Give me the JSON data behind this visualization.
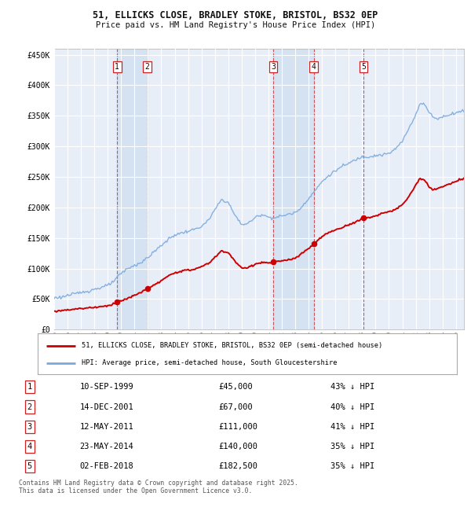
{
  "title_line1": "51, ELLICKS CLOSE, BRADLEY STOKE, BRISTOL, BS32 0EP",
  "title_line2": "Price paid vs. HM Land Registry's House Price Index (HPI)",
  "legend_line1": "51, ELLICKS CLOSE, BRADLEY STOKE, BRISTOL, BS32 0EP (semi-detached house)",
  "legend_line2": "HPI: Average price, semi-detached house, South Gloucestershire",
  "footer": "Contains HM Land Registry data © Crown copyright and database right 2025.\nThis data is licensed under the Open Government Licence v3.0.",
  "price_paid_color": "#cc0000",
  "hpi_color": "#7aaadd",
  "background_color": "#ffffff",
  "plot_bg_color": "#e8eef8",
  "grid_color": "#ffffff",
  "shade_color": "#ccddf0",
  "transactions": [
    {
      "num": 1,
      "date": "10-SEP-1999",
      "year": 1999.7,
      "price": 45000,
      "pct": "43% ↓ HPI"
    },
    {
      "num": 2,
      "date": "14-DEC-2001",
      "year": 2001.95,
      "price": 67000,
      "pct": "40% ↓ HPI"
    },
    {
      "num": 3,
      "date": "12-MAY-2011",
      "year": 2011.36,
      "price": 111000,
      "pct": "41% ↓ HPI"
    },
    {
      "num": 4,
      "date": "23-MAY-2014",
      "year": 2014.39,
      "price": 140000,
      "pct": "35% ↓ HPI"
    },
    {
      "num": 5,
      "date": "02-FEB-2018",
      "year": 2018.09,
      "price": 182500,
      "pct": "35% ↓ HPI"
    }
  ],
  "ylim": [
    0,
    460000
  ],
  "xlim_start": 1995.0,
  "xlim_end": 2025.6,
  "yticks": [
    0,
    50000,
    100000,
    150000,
    200000,
    250000,
    300000,
    350000,
    400000,
    450000
  ],
  "ytick_labels": [
    "£0",
    "£50K",
    "£100K",
    "£150K",
    "£200K",
    "£250K",
    "£300K",
    "£350K",
    "£400K",
    "£450K"
  ],
  "hpi_anchors": [
    [
      1995.0,
      52000
    ],
    [
      1995.5,
      53000
    ],
    [
      1996.0,
      56000
    ],
    [
      1996.5,
      58000
    ],
    [
      1997.0,
      61000
    ],
    [
      1997.5,
      63000
    ],
    [
      1998.0,
      66000
    ],
    [
      1998.5,
      69000
    ],
    [
      1999.0,
      72000
    ],
    [
      1999.5,
      80000
    ],
    [
      2000.0,
      92000
    ],
    [
      2000.5,
      100000
    ],
    [
      2001.0,
      105000
    ],
    [
      2001.5,
      110000
    ],
    [
      2002.0,
      118000
    ],
    [
      2002.5,
      128000
    ],
    [
      2003.0,
      138000
    ],
    [
      2003.5,
      147000
    ],
    [
      2004.0,
      155000
    ],
    [
      2004.5,
      158000
    ],
    [
      2005.0,
      161000
    ],
    [
      2005.5,
      164000
    ],
    [
      2006.0,
      169000
    ],
    [
      2006.5,
      178000
    ],
    [
      2007.0,
      196000
    ],
    [
      2007.5,
      213000
    ],
    [
      2008.0,
      208000
    ],
    [
      2008.5,
      187000
    ],
    [
      2009.0,
      172000
    ],
    [
      2009.5,
      174000
    ],
    [
      2010.0,
      183000
    ],
    [
      2010.5,
      189000
    ],
    [
      2011.0,
      184000
    ],
    [
      2011.5,
      183000
    ],
    [
      2012.0,
      186000
    ],
    [
      2012.5,
      189000
    ],
    [
      2013.0,
      191000
    ],
    [
      2013.5,
      201000
    ],
    [
      2014.0,
      215000
    ],
    [
      2014.5,
      228000
    ],
    [
      2015.0,
      242000
    ],
    [
      2015.5,
      252000
    ],
    [
      2016.0,
      260000
    ],
    [
      2016.5,
      267000
    ],
    [
      2017.0,
      272000
    ],
    [
      2017.5,
      278000
    ],
    [
      2018.0,
      283000
    ],
    [
      2018.5,
      283000
    ],
    [
      2019.0,
      285000
    ],
    [
      2019.5,
      286000
    ],
    [
      2020.0,
      288000
    ],
    [
      2020.5,
      296000
    ],
    [
      2021.0,
      308000
    ],
    [
      2021.5,
      330000
    ],
    [
      2022.0,
      352000
    ],
    [
      2022.3,
      370000
    ],
    [
      2022.7,
      368000
    ],
    [
      2023.0,
      355000
    ],
    [
      2023.5,
      345000
    ],
    [
      2024.0,
      348000
    ],
    [
      2024.5,
      352000
    ],
    [
      2025.0,
      355000
    ],
    [
      2025.5,
      358000
    ]
  ],
  "pp_anchors": [
    [
      1995.0,
      30000
    ],
    [
      1995.5,
      31000
    ],
    [
      1996.0,
      32500
    ],
    [
      1996.5,
      33500
    ],
    [
      1997.0,
      34500
    ],
    [
      1997.5,
      35500
    ],
    [
      1998.0,
      36500
    ],
    [
      1998.5,
      37500
    ],
    [
      1999.0,
      39000
    ],
    [
      1999.5,
      43000
    ],
    [
      1999.7,
      45000
    ],
    [
      2000.0,
      47000
    ],
    [
      2000.5,
      51000
    ],
    [
      2001.0,
      56000
    ],
    [
      2001.5,
      61000
    ],
    [
      2001.95,
      67000
    ],
    [
      2002.0,
      67500
    ],
    [
      2002.5,
      73000
    ],
    [
      2003.0,
      80000
    ],
    [
      2003.5,
      87000
    ],
    [
      2004.0,
      93000
    ],
    [
      2004.5,
      96000
    ],
    [
      2005.0,
      97000
    ],
    [
      2005.5,
      99000
    ],
    [
      2006.0,
      103000
    ],
    [
      2006.5,
      108000
    ],
    [
      2007.0,
      118000
    ],
    [
      2007.5,
      129000
    ],
    [
      2008.0,
      126000
    ],
    [
      2008.5,
      112000
    ],
    [
      2009.0,
      100000
    ],
    [
      2009.5,
      102000
    ],
    [
      2010.0,
      107000
    ],
    [
      2010.5,
      110000
    ],
    [
      2011.0,
      109000
    ],
    [
      2011.36,
      111000
    ],
    [
      2011.5,
      111500
    ],
    [
      2012.0,
      112000
    ],
    [
      2012.5,
      114000
    ],
    [
      2013.0,
      117000
    ],
    [
      2013.5,
      124000
    ],
    [
      2014.0,
      133000
    ],
    [
      2014.39,
      140000
    ],
    [
      2014.5,
      142000
    ],
    [
      2015.0,
      152000
    ],
    [
      2015.5,
      159000
    ],
    [
      2016.0,
      163000
    ],
    [
      2016.5,
      167000
    ],
    [
      2017.0,
      172000
    ],
    [
      2017.5,
      176000
    ],
    [
      2018.0,
      181000
    ],
    [
      2018.09,
      182500
    ],
    [
      2018.5,
      183000
    ],
    [
      2019.0,
      186000
    ],
    [
      2019.5,
      191000
    ],
    [
      2020.0,
      192000
    ],
    [
      2020.5,
      197000
    ],
    [
      2021.0,
      204000
    ],
    [
      2021.5,
      218000
    ],
    [
      2022.0,
      237000
    ],
    [
      2022.3,
      247000
    ],
    [
      2022.7,
      244000
    ],
    [
      2023.0,
      233000
    ],
    [
      2023.3,
      228000
    ],
    [
      2023.7,
      232000
    ],
    [
      2024.0,
      234000
    ],
    [
      2024.5,
      238000
    ],
    [
      2025.0,
      242000
    ],
    [
      2025.5,
      247000
    ]
  ]
}
